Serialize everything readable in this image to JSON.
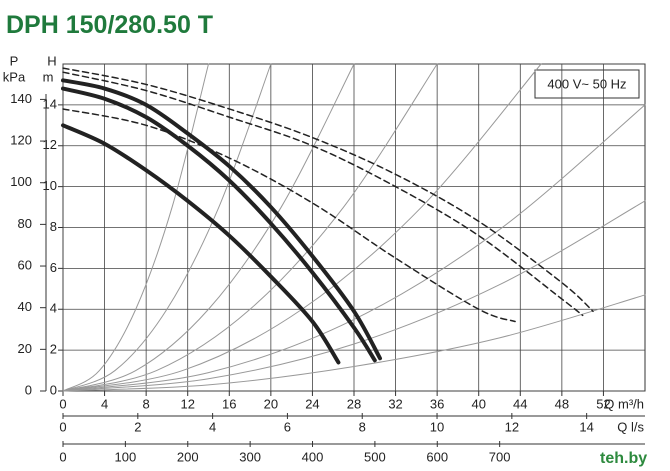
{
  "chart_data": {
    "type": "line",
    "title": "DPH 150/280.50 T",
    "annotation": "400 V~ 50 Hz",
    "y_label": "H",
    "y_unit": "m",
    "p_label": "P",
    "p_unit": "kPa",
    "x_label": "Q m³/h",
    "x2_label": "Q l/s",
    "watermark": "teh.by",
    "xlim": [
      0,
      56
    ],
    "xticks": [
      0,
      4,
      8,
      12,
      16,
      20,
      24,
      28,
      32,
      36,
      40,
      44,
      48,
      52
    ],
    "ylim": [
      0,
      16
    ],
    "yticks": [
      0,
      2,
      4,
      6,
      8,
      10,
      12,
      14
    ],
    "plim": [
      0,
      157
    ],
    "pticks": [
      0,
      20,
      40,
      60,
      80,
      100,
      120,
      140
    ],
    "x2lim": [
      0,
      15.56
    ],
    "x2ticks": [
      0,
      2,
      4,
      6,
      8,
      10,
      12,
      14
    ],
    "x3lim": [
      0,
      933
    ],
    "x3ticks": [
      0,
      100,
      200,
      300,
      400,
      500,
      600,
      700
    ],
    "grid": true,
    "series": [
      {
        "color": "#999999",
        "width": 1,
        "dash": false,
        "x": [
          0,
          3.5,
          7,
          10.5,
          14
        ],
        "values": [
          0,
          1,
          4,
          9,
          16
        ]
      },
      {
        "color": "#999999",
        "width": 1,
        "dash": false,
        "x": [
          0,
          5,
          10,
          15,
          20
        ],
        "values": [
          0,
          1,
          4,
          9,
          16
        ]
      },
      {
        "color": "#999999",
        "width": 1,
        "dash": false,
        "x": [
          0,
          7,
          14,
          21,
          28
        ],
        "values": [
          0,
          1,
          4,
          9,
          16
        ]
      },
      {
        "color": "#999999",
        "width": 1,
        "dash": false,
        "x": [
          0,
          9,
          18,
          27,
          36
        ],
        "values": [
          0,
          1,
          4,
          9,
          16
        ]
      },
      {
        "color": "#999999",
        "width": 1,
        "dash": false,
        "x": [
          0,
          11.5,
          23,
          34.5,
          46
        ],
        "values": [
          0,
          1,
          4,
          9,
          16
        ]
      },
      {
        "color": "#999999",
        "width": 1,
        "dash": false,
        "x": [
          0,
          14,
          28,
          42,
          56
        ],
        "values": [
          0,
          0.9,
          3.5,
          7.9,
          14
        ]
      },
      {
        "color": "#999999",
        "width": 1,
        "dash": false,
        "x": [
          0,
          14,
          28,
          42,
          56
        ],
        "values": [
          0,
          0.6,
          2.3,
          5.2,
          9.3
        ]
      },
      {
        "color": "#999999",
        "width": 1,
        "dash": false,
        "x": [
          0,
          14,
          28,
          42,
          56
        ],
        "values": [
          0,
          0.3,
          1.2,
          2.6,
          4.7
        ]
      },
      {
        "color": "#222222",
        "width": 4,
        "dash": false,
        "x": [
          0,
          4,
          8,
          12,
          16,
          20,
          24,
          28,
          30.5
        ],
        "values": [
          15.2,
          14.8,
          14.0,
          12.6,
          11.0,
          9.0,
          6.6,
          3.9,
          1.6
        ]
      },
      {
        "color": "#222222",
        "width": 4,
        "dash": false,
        "x": [
          0,
          4,
          8,
          12,
          16,
          20,
          24,
          28,
          30
        ],
        "values": [
          14.8,
          14.3,
          13.4,
          12.0,
          10.3,
          8.2,
          5.8,
          3.1,
          1.5
        ]
      },
      {
        "color": "#222222",
        "width": 4,
        "dash": false,
        "x": [
          0,
          4,
          8,
          12,
          16,
          20,
          24,
          26.5
        ],
        "values": [
          13.0,
          12.1,
          10.8,
          9.3,
          7.6,
          5.6,
          3.4,
          1.4
        ]
      },
      {
        "color": "#222222",
        "width": 1.5,
        "dash": true,
        "x": [
          0,
          8,
          16,
          24,
          32,
          40,
          48,
          51
        ],
        "values": [
          15.8,
          15.0,
          13.8,
          12.4,
          10.6,
          8.3,
          5.3,
          3.9
        ]
      },
      {
        "color": "#222222",
        "width": 1.5,
        "dash": true,
        "x": [
          0,
          8,
          16,
          24,
          32,
          40,
          48,
          50
        ],
        "values": [
          15.6,
          14.7,
          13.4,
          12.0,
          10.0,
          7.6,
          4.5,
          3.7
        ]
      },
      {
        "color": "#222222",
        "width": 1.5,
        "dash": true,
        "x": [
          0,
          8,
          16,
          24,
          32,
          40,
          43.5
        ],
        "values": [
          13.8,
          13.0,
          11.4,
          9.2,
          6.5,
          4.0,
          3.4
        ]
      }
    ]
  }
}
